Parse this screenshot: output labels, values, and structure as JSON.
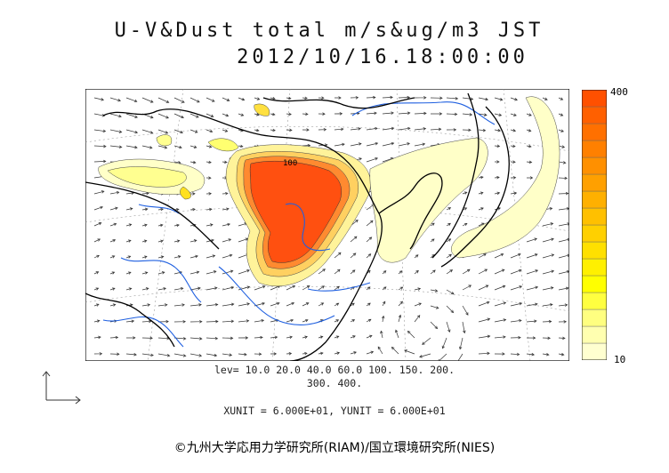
{
  "title": "U-V&Dust total m/s&ug/m3 JST",
  "timestamp": "2012/10/16.18:00:00",
  "colorbar": {
    "max_label": "400",
    "min_label": "10",
    "colors": [
      "#ffffd0",
      "#ffffb0",
      "#ffff80",
      "#ffff40",
      "#ffff00",
      "#fff000",
      "#ffe000",
      "#ffd000",
      "#ffc000",
      "#ffb000",
      "#ffa000",
      "#ff9000",
      "#ff8000",
      "#ff7000",
      "#ff6000",
      "#ff5000"
    ]
  },
  "levels_line1": "lev= 10.0 20.0 40.0 60.0 100. 150. 200.",
  "levels_line2": "300. 400.",
  "contour_label": "100",
  "units": "XUNIT = 6.000E+01, YUNIT = 6.000E+01",
  "credit": "©九州大学応用力学研究所(RIAM)/国立環境研究所(NIES)",
  "colors": {
    "coast": "#000000",
    "rivers": "#1e5fe0",
    "vectors": "#333333"
  }
}
